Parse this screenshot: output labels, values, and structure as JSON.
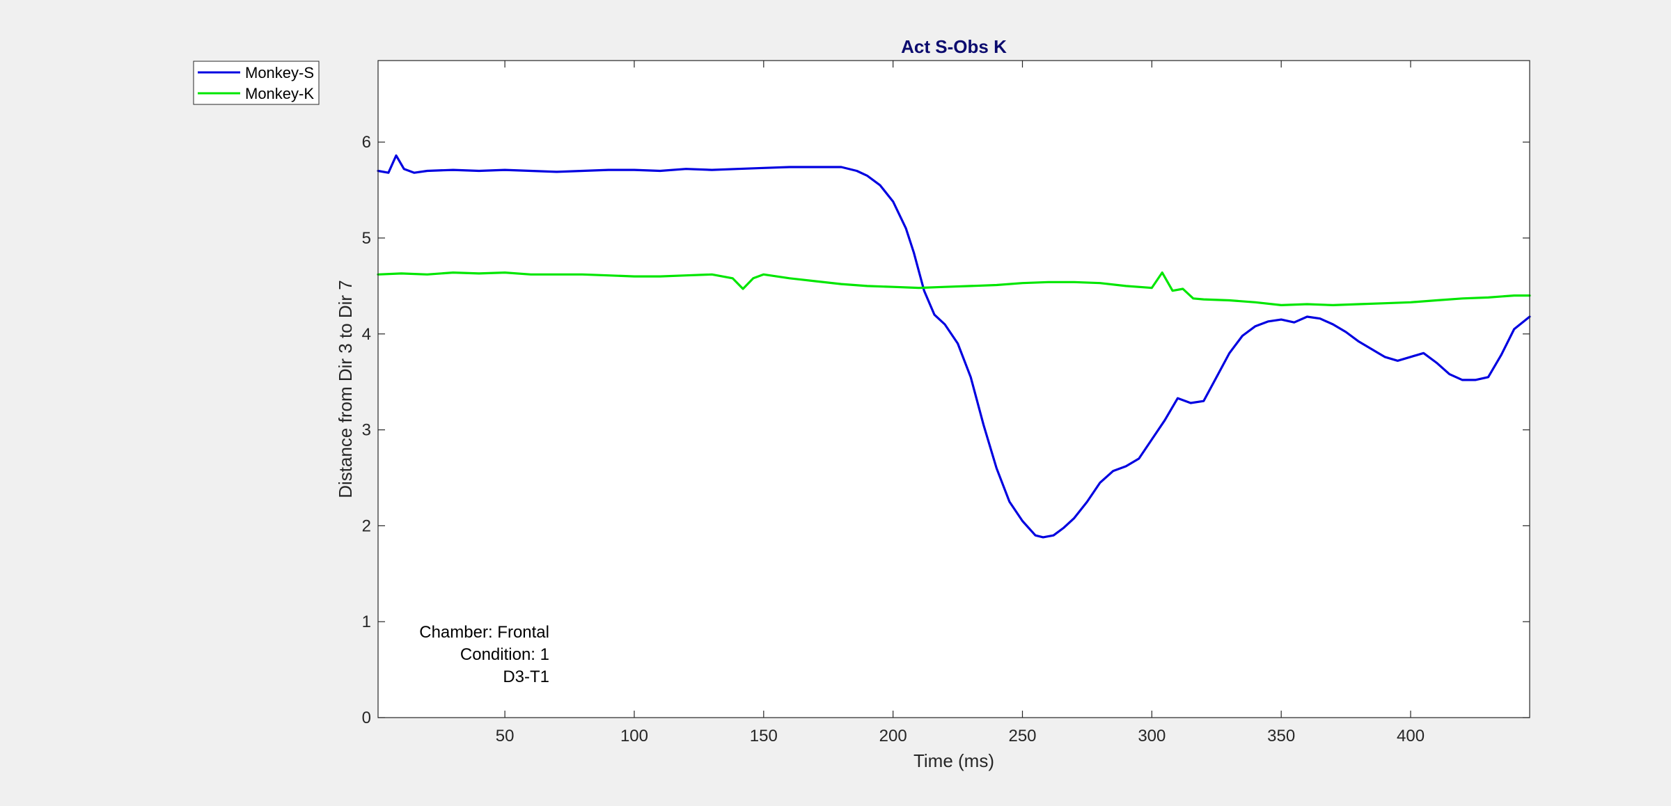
{
  "chart_data": {
    "type": "line",
    "title": "Act S-Obs K",
    "xlabel": "Time (ms)",
    "ylabel": "Distance from Dir 3 to Dir 7",
    "xlim": [
      1,
      446
    ],
    "ylim": [
      0,
      6.85
    ],
    "xticks": [
      50,
      100,
      150,
      200,
      250,
      300,
      350,
      400
    ],
    "yticks": [
      0,
      1,
      2,
      3,
      4,
      5,
      6
    ],
    "grid": false,
    "legend_position": "outside-top-left",
    "annotations": [
      "Chamber: Frontal",
      "Condition: 1",
      "D3-T1"
    ],
    "series": [
      {
        "name": "Monkey-S",
        "color": "#0000e0",
        "points": [
          [
            1,
            5.7
          ],
          [
            5,
            5.68
          ],
          [
            8,
            5.86
          ],
          [
            11,
            5.72
          ],
          [
            15,
            5.68
          ],
          [
            20,
            5.7
          ],
          [
            30,
            5.71
          ],
          [
            40,
            5.7
          ],
          [
            50,
            5.71
          ],
          [
            60,
            5.7
          ],
          [
            70,
            5.69
          ],
          [
            80,
            5.7
          ],
          [
            90,
            5.71
          ],
          [
            100,
            5.71
          ],
          [
            110,
            5.7
          ],
          [
            120,
            5.72
          ],
          [
            130,
            5.71
          ],
          [
            140,
            5.72
          ],
          [
            150,
            5.73
          ],
          [
            160,
            5.74
          ],
          [
            170,
            5.74
          ],
          [
            180,
            5.74
          ],
          [
            186,
            5.7
          ],
          [
            190,
            5.65
          ],
          [
            195,
            5.55
          ],
          [
            200,
            5.38
          ],
          [
            205,
            5.1
          ],
          [
            208,
            4.85
          ],
          [
            212,
            4.45
          ],
          [
            216,
            4.2
          ],
          [
            220,
            4.1
          ],
          [
            225,
            3.9
          ],
          [
            230,
            3.55
          ],
          [
            235,
            3.05
          ],
          [
            240,
            2.6
          ],
          [
            245,
            2.25
          ],
          [
            250,
            2.05
          ],
          [
            255,
            1.9
          ],
          [
            258,
            1.88
          ],
          [
            262,
            1.9
          ],
          [
            266,
            1.98
          ],
          [
            270,
            2.08
          ],
          [
            275,
            2.25
          ],
          [
            280,
            2.45
          ],
          [
            285,
            2.57
          ],
          [
            290,
            2.62
          ],
          [
            295,
            2.7
          ],
          [
            300,
            2.9
          ],
          [
            305,
            3.1
          ],
          [
            310,
            3.33
          ],
          [
            315,
            3.28
          ],
          [
            320,
            3.3
          ],
          [
            325,
            3.55
          ],
          [
            330,
            3.8
          ],
          [
            335,
            3.98
          ],
          [
            340,
            4.08
          ],
          [
            345,
            4.13
          ],
          [
            350,
            4.15
          ],
          [
            355,
            4.12
          ],
          [
            360,
            4.18
          ],
          [
            365,
            4.16
          ],
          [
            370,
            4.1
          ],
          [
            375,
            4.02
          ],
          [
            380,
            3.92
          ],
          [
            385,
            3.84
          ],
          [
            390,
            3.76
          ],
          [
            395,
            3.72
          ],
          [
            400,
            3.76
          ],
          [
            405,
            3.8
          ],
          [
            410,
            3.7
          ],
          [
            415,
            3.58
          ],
          [
            420,
            3.52
          ],
          [
            425,
            3.52
          ],
          [
            430,
            3.55
          ],
          [
            435,
            3.78
          ],
          [
            440,
            4.05
          ],
          [
            446,
            4.18
          ]
        ]
      },
      {
        "name": "Monkey-K",
        "color": "#00e600",
        "points": [
          [
            1,
            4.62
          ],
          [
            10,
            4.63
          ],
          [
            20,
            4.62
          ],
          [
            30,
            4.64
          ],
          [
            40,
            4.63
          ],
          [
            50,
            4.64
          ],
          [
            60,
            4.62
          ],
          [
            70,
            4.62
          ],
          [
            80,
            4.62
          ],
          [
            90,
            4.61
          ],
          [
            100,
            4.6
          ],
          [
            110,
            4.6
          ],
          [
            120,
            4.61
          ],
          [
            130,
            4.62
          ],
          [
            138,
            4.58
          ],
          [
            142,
            4.47
          ],
          [
            146,
            4.58
          ],
          [
            150,
            4.62
          ],
          [
            160,
            4.58
          ],
          [
            170,
            4.55
          ],
          [
            180,
            4.52
          ],
          [
            190,
            4.5
          ],
          [
            200,
            4.49
          ],
          [
            210,
            4.48
          ],
          [
            220,
            4.49
          ],
          [
            230,
            4.5
          ],
          [
            240,
            4.51
          ],
          [
            250,
            4.53
          ],
          [
            260,
            4.54
          ],
          [
            270,
            4.54
          ],
          [
            280,
            4.53
          ],
          [
            290,
            4.5
          ],
          [
            300,
            4.48
          ],
          [
            304,
            4.64
          ],
          [
            308,
            4.45
          ],
          [
            312,
            4.47
          ],
          [
            316,
            4.37
          ],
          [
            320,
            4.36
          ],
          [
            330,
            4.35
          ],
          [
            340,
            4.33
          ],
          [
            350,
            4.3
          ],
          [
            360,
            4.31
          ],
          [
            370,
            4.3
          ],
          [
            380,
            4.31
          ],
          [
            390,
            4.32
          ],
          [
            400,
            4.33
          ],
          [
            410,
            4.35
          ],
          [
            420,
            4.37
          ],
          [
            430,
            4.38
          ],
          [
            440,
            4.4
          ],
          [
            446,
            4.4
          ]
        ]
      }
    ]
  }
}
